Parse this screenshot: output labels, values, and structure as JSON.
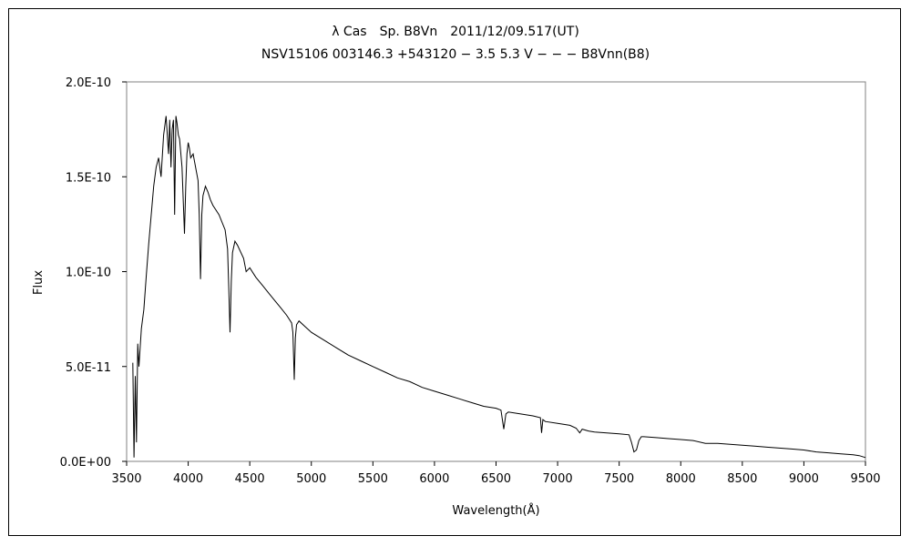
{
  "chart_data": {
    "type": "line",
    "title": "λ Cas　Sp. B8Vn　2011/12/09.517(UT)",
    "subtitle": "NSV15106 003146.3 +543120 − 3.5 5.3 V − − − B8Vnn(B8)",
    "xlabel": "Wavelength(Å)",
    "ylabel": "Flux",
    "xlim": [
      3500,
      9500
    ],
    "ylim": [
      0,
      2e-10
    ],
    "xticks": [
      3500,
      4000,
      4500,
      5000,
      5500,
      6000,
      6500,
      7000,
      7500,
      8000,
      8500,
      9000,
      9500
    ],
    "xtick_labels": [
      "3500",
      "4000",
      "4500",
      "5000",
      "5500",
      "6000",
      "6500",
      "7000",
      "7500",
      "8000",
      "8500",
      "9000",
      "9500"
    ],
    "yticks": [
      0,
      5e-11,
      1e-10,
      1.5e-10,
      2e-10
    ],
    "ytick_labels": [
      "0.0E+00",
      "5.0E-11",
      "1.0E-10",
      "1.5E-10",
      "2.0E-10"
    ],
    "grid": false,
    "legend": "none",
    "line_color": "#000000",
    "series": [
      {
        "x": [
          3550,
          3560,
          3570,
          3580,
          3590,
          3600,
          3620,
          3640,
          3660,
          3680,
          3700,
          3720,
          3740,
          3760,
          3780,
          3800,
          3820,
          3840,
          3850,
          3860,
          3870,
          3880,
          3890,
          3900,
          3910,
          3920,
          3930,
          3950,
          3970,
          3980,
          3990,
          4000,
          4010,
          4020,
          4040,
          4060,
          4080,
          4090,
          4100,
          4110,
          4120,
          4140,
          4160,
          4180,
          4200,
          4250,
          4300,
          4320,
          4330,
          4340,
          4350,
          4360,
          4380,
          4400,
          4450,
          4471,
          4500,
          4550,
          4600,
          4650,
          4700,
          4750,
          4800,
          4840,
          4850,
          4861,
          4870,
          4880,
          4900,
          4950,
          5000,
          5100,
          5200,
          5300,
          5400,
          5500,
          5600,
          5700,
          5800,
          5900,
          6000,
          6100,
          6200,
          6300,
          6400,
          6500,
          6540,
          6563,
          6580,
          6600,
          6700,
          6800,
          6860,
          6870,
          6880,
          6900,
          7000,
          7100,
          7150,
          7180,
          7200,
          7250,
          7300,
          7400,
          7500,
          7580,
          7600,
          7620,
          7640,
          7660,
          7680,
          7700,
          7800,
          7900,
          8000,
          8100,
          8200,
          8300,
          8400,
          8500,
          8600,
          8700,
          8800,
          8900,
          9000,
          9100,
          9200,
          9300,
          9400,
          9450,
          9500
        ],
        "y": [
          5.2e-11,
          2e-12,
          4.5e-11,
          1e-11,
          6.2e-11,
          5e-11,
          7e-11,
          8e-11,
          9.8e-11,
          1.15e-10,
          1.3e-10,
          1.45e-10,
          1.55e-10,
          1.6e-10,
          1.5e-10,
          1.72e-10,
          1.82e-10,
          1.62e-10,
          1.8e-10,
          1.55e-10,
          1.75e-10,
          1.8e-10,
          1.3e-10,
          1.82e-10,
          1.78e-10,
          1.72e-10,
          1.7e-10,
          1.55e-10,
          1.2e-10,
          1.45e-10,
          1.62e-10,
          1.68e-10,
          1.65e-10,
          1.6e-10,
          1.62e-10,
          1.55e-10,
          1.48e-10,
          1.3e-10,
          9.6e-11,
          1.3e-10,
          1.4e-10,
          1.45e-10,
          1.42e-10,
          1.38e-10,
          1.35e-10,
          1.3e-10,
          1.22e-10,
          1.12e-10,
          9e-11,
          6.8e-11,
          9.5e-11,
          1.1e-10,
          1.16e-10,
          1.14e-10,
          1.07e-10,
          1e-10,
          1.02e-10,
          9.7e-11,
          9.3e-11,
          8.9e-11,
          8.5e-11,
          8.1e-11,
          7.7e-11,
          7.3e-11,
          6.8e-11,
          4.3e-11,
          6.5e-11,
          7.2e-11,
          7.4e-11,
          7.1e-11,
          6.8e-11,
          6.4e-11,
          6e-11,
          5.6e-11,
          5.3e-11,
          5e-11,
          4.7e-11,
          4.4e-11,
          4.2e-11,
          3.9e-11,
          3.7e-11,
          3.5e-11,
          3.3e-11,
          3.1e-11,
          2.9e-11,
          2.8e-11,
          2.7e-11,
          1.7e-11,
          2.5e-11,
          2.6e-11,
          2.5e-11,
          2.4e-11,
          2.3e-11,
          1.5e-11,
          2.2e-11,
          2.1e-11,
          2e-11,
          1.9e-11,
          1.75e-11,
          1.5e-11,
          1.7e-11,
          1.6e-11,
          1.55e-11,
          1.5e-11,
          1.45e-11,
          1.4e-11,
          1e-11,
          5e-12,
          6e-12,
          1.1e-11,
          1.3e-11,
          1.3e-11,
          1.25e-11,
          1.2e-11,
          1.15e-11,
          1.1e-11,
          9.5e-12,
          9.5e-12,
          9e-12,
          8.5e-12,
          8e-12,
          7.5e-12,
          7e-12,
          6.5e-12,
          6e-12,
          5e-12,
          4.5e-12,
          4e-12,
          3.5e-12,
          3e-12,
          2e-12
        ]
      }
    ]
  }
}
